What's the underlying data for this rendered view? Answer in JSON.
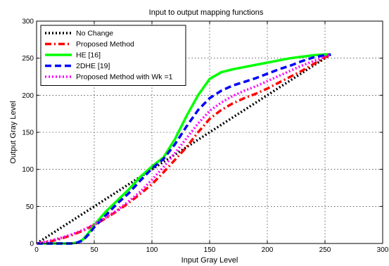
{
  "chart_data": {
    "type": "line",
    "title": "Input to output mapping functions",
    "xlabel": "Input Gray Level",
    "ylabel": "Output Gray Level",
    "xlim": [
      0,
      300
    ],
    "ylim": [
      0,
      300
    ],
    "xticks": [
      0,
      50,
      100,
      150,
      200,
      250,
      300
    ],
    "yticks": [
      0,
      50,
      100,
      150,
      200,
      250,
      300
    ],
    "grid": true,
    "legend_position": "top-left",
    "series": [
      {
        "name": "No Change",
        "color": "#000000",
        "style": "dotted",
        "x": [
          0,
          255
        ],
        "y": [
          0,
          255
        ]
      },
      {
        "name": "Proposed Method",
        "color": "#ff0000",
        "style": "dashdot",
        "x": [
          0,
          10,
          20,
          30,
          40,
          50,
          60,
          70,
          80,
          90,
          100,
          110,
          120,
          130,
          140,
          150,
          160,
          170,
          180,
          190,
          200,
          210,
          220,
          230,
          240,
          250,
          255
        ],
        "y": [
          0,
          2,
          6,
          11,
          17,
          25,
          34,
          44,
          55,
          67,
          80,
          96,
          113,
          130,
          150,
          168,
          180,
          189,
          196,
          202,
          209,
          217,
          225,
          233,
          242,
          251,
          255
        ]
      },
      {
        "name": "HE [16]",
        "color": "#00ff00",
        "style": "solid",
        "x": [
          0,
          10,
          20,
          30,
          35,
          40,
          45,
          50,
          60,
          70,
          80,
          90,
          100,
          110,
          120,
          130,
          140,
          150,
          160,
          170,
          180,
          190,
          200,
          210,
          220,
          230,
          240,
          250,
          255
        ],
        "y": [
          0,
          0,
          0,
          0,
          1,
          5,
          14,
          25,
          43,
          58,
          73,
          90,
          104,
          116,
          141,
          172,
          200,
          222,
          231,
          235,
          238,
          241,
          244,
          247,
          250,
          252,
          254,
          255,
          255
        ]
      },
      {
        "name": "2DHE [19]",
        "color": "#0000ff",
        "style": "dashed",
        "x": [
          0,
          10,
          20,
          30,
          35,
          40,
          45,
          50,
          60,
          70,
          80,
          90,
          100,
          110,
          120,
          130,
          140,
          150,
          160,
          170,
          180,
          190,
          200,
          210,
          220,
          230,
          240,
          250,
          255
        ],
        "y": [
          0,
          0,
          0,
          0,
          1,
          4,
          12,
          22,
          38,
          54,
          68,
          85,
          101,
          114,
          134,
          158,
          180,
          196,
          206,
          213,
          218,
          223,
          229,
          235,
          240,
          246,
          251,
          254,
          255
        ]
      },
      {
        "name": "Proposed Method with Wk =1",
        "color": "#ff00ff",
        "style": "dotted",
        "x": [
          0,
          10,
          20,
          30,
          40,
          50,
          60,
          70,
          80,
          90,
          100,
          110,
          120,
          130,
          140,
          150,
          160,
          170,
          180,
          190,
          200,
          210,
          220,
          230,
          240,
          250,
          255
        ],
        "y": [
          0,
          3,
          7,
          12,
          18,
          26,
          35,
          45,
          57,
          70,
          86,
          103,
          122,
          142,
          162,
          179,
          190,
          199,
          206,
          212,
          219,
          226,
          233,
          240,
          246,
          252,
          255
        ]
      }
    ]
  }
}
